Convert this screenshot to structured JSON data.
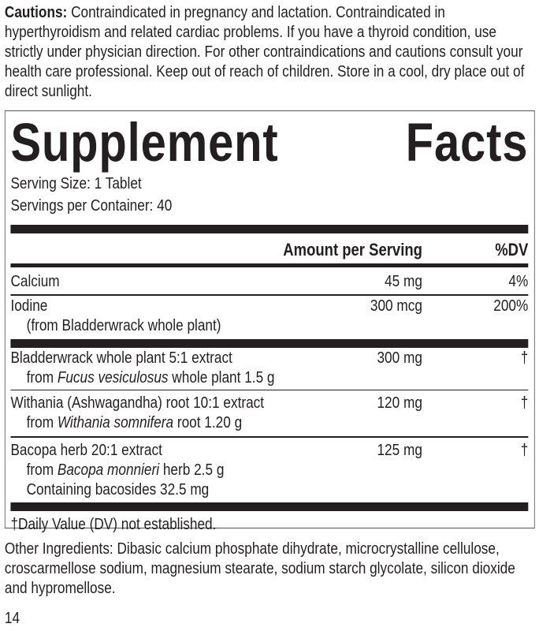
{
  "cautions": {
    "label": "Cautions:",
    "text": "Contraindicated in pregnancy and lactation. Contraindicated in hyperthyroidism and related cardiac problems. If you have a thyroid condition, use strictly under physician direction. For other contraindications and cautions consult your health care professional. Keep out of reach of children. Store in a cool, dry place out of direct sunlight."
  },
  "facts": {
    "title_word1": "Supplement",
    "title_word2": "Facts",
    "serving_size": "Serving Size: 1 Tablet",
    "servings_per_container": "Servings per Container: 40",
    "header_amount": "Amount per Serving",
    "header_dv": "%DV",
    "rows": [
      {
        "name": "Calcium",
        "amount": "45 mg",
        "dv": "4%"
      },
      {
        "name": "Iodine",
        "sub1": "(from Bladderwrack whole plant)",
        "amount": "300 mcg",
        "dv": "200%"
      },
      {
        "name": "Bladderwrack whole plant 5:1 extract",
        "sub_pre": "from ",
        "sub_italic": "Fucus vesiculosus",
        "sub_post": " whole plant 1.5 g",
        "amount": "300 mg",
        "dv": "†"
      },
      {
        "name": "Withania (Ashwagandha) root 10:1 extract",
        "sub_pre": "from ",
        "sub_italic": "Withania somnifera",
        "sub_post": " root 1.20 g",
        "amount": "120 mg",
        "dv": "†"
      },
      {
        "name": "Bacopa herb 20:1 extract",
        "sub_pre": "from ",
        "sub_italic": "Bacopa monnieri",
        "sub_post": " herb 2.5 g",
        "sub2": "Containing bacosides 32.5 mg",
        "amount": "125 mg",
        "dv": "†"
      }
    ],
    "footnote": "†Daily Value (DV) not established."
  },
  "other_ingredients": "Other Ingredients: Dibasic calcium phosphate dihydrate, microcrystalline cellulose, croscarmellose sodium, magnesium stearate, sodium starch glycolate, silicon dioxide and hypromellose.",
  "page_number": "14"
}
